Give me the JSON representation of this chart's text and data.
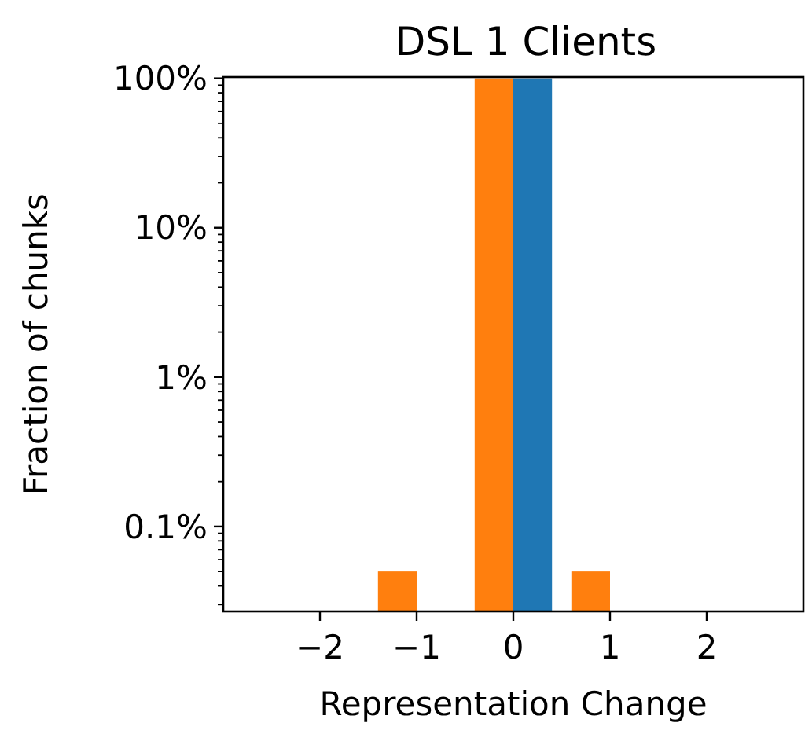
{
  "chart_data": {
    "type": "bar",
    "title": "DSL 1 Clients",
    "xlabel": "Representation Change",
    "ylabel": "Fraction of chunks",
    "log": "y",
    "grid": false,
    "xlim": [
      -3,
      3
    ],
    "xticks": [
      {
        "value": -2,
        "label": "−2"
      },
      {
        "value": -1,
        "label": "−1"
      },
      0,
      1,
      2
    ],
    "ylim": [
      0.027,
      102
    ],
    "yticks": [
      {
        "value": 0.1,
        "label": "0.1%"
      },
      {
        "value": 1,
        "label": "1%"
      },
      {
        "value": 10,
        "label": "10%"
      },
      {
        "value": 100,
        "label": "100%"
      },
      {
        "value": 0.03,
        "label": null
      },
      {
        "value": 0.04,
        "label": null
      },
      {
        "value": 0.05,
        "label": null
      },
      {
        "value": 0.06,
        "label": null
      },
      {
        "value": 0.07,
        "label": null
      },
      {
        "value": 0.08,
        "label": null
      },
      {
        "value": 0.09,
        "label": null
      },
      {
        "value": 0.2,
        "label": null
      },
      {
        "value": 0.3,
        "label": null
      },
      {
        "value": 0.4,
        "label": null
      },
      {
        "value": 0.5,
        "label": null
      },
      {
        "value": 0.6,
        "label": null
      },
      {
        "value": 0.7,
        "label": null
      },
      {
        "value": 0.8,
        "label": null
      },
      {
        "value": 0.9,
        "label": null
      },
      {
        "value": 2,
        "label": null
      },
      {
        "value": 3,
        "label": null
      },
      {
        "value": 4,
        "label": null
      },
      {
        "value": 5,
        "label": null
      },
      {
        "value": 6,
        "label": null
      },
      {
        "value": 7,
        "label": null
      },
      {
        "value": 8,
        "label": null
      },
      {
        "value": 9,
        "label": null
      },
      {
        "value": 20,
        "label": null
      },
      {
        "value": 30,
        "label": null
      },
      {
        "value": 40,
        "label": null
      },
      {
        "value": 50,
        "label": null
      },
      {
        "value": 60,
        "label": null
      },
      {
        "value": 70,
        "label": null
      },
      {
        "value": 80,
        "label": null
      },
      {
        "value": 90,
        "label": null
      }
    ],
    "series": [
      {
        "color": "#ff7f0e",
        "x": [
          -1,
          0,
          1
        ],
        "values": [
          0.05,
          100,
          0.05
        ]
      },
      {
        "color": "#1f77b4",
        "x": [
          0
        ],
        "values": [
          100
        ]
      }
    ]
  }
}
